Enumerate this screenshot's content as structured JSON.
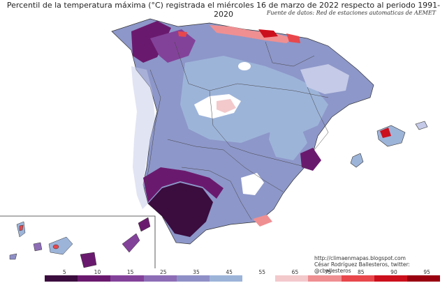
{
  "header": {
    "title": "Percentil de la temperatura máxima (°C) registrada el miércoles 16 de marzo de 2022 respecto al periodo 1991-2020",
    "source": "Fuente de datos: Red de estaciones automaticas de AEMET"
  },
  "credits": {
    "url": "http://climaenmapas.blogspot.com",
    "author": "César Rodríguez Ballesteros, twitter: @cballesteros"
  },
  "legend": {
    "labels": [
      "5",
      "10",
      "15",
      "25",
      "35",
      "45",
      "55",
      "65",
      "75",
      "85",
      "90",
      "95"
    ],
    "colors": [
      "#3b0c3e",
      "#6a1a6e",
      "#83429a",
      "#8d6db6",
      "#8f8fc7",
      "#9db4d9",
      "#ffffff",
      "#f3c9cc",
      "#ef8f92",
      "#e8474c",
      "#cc0f1c",
      "#990010"
    ]
  }
}
